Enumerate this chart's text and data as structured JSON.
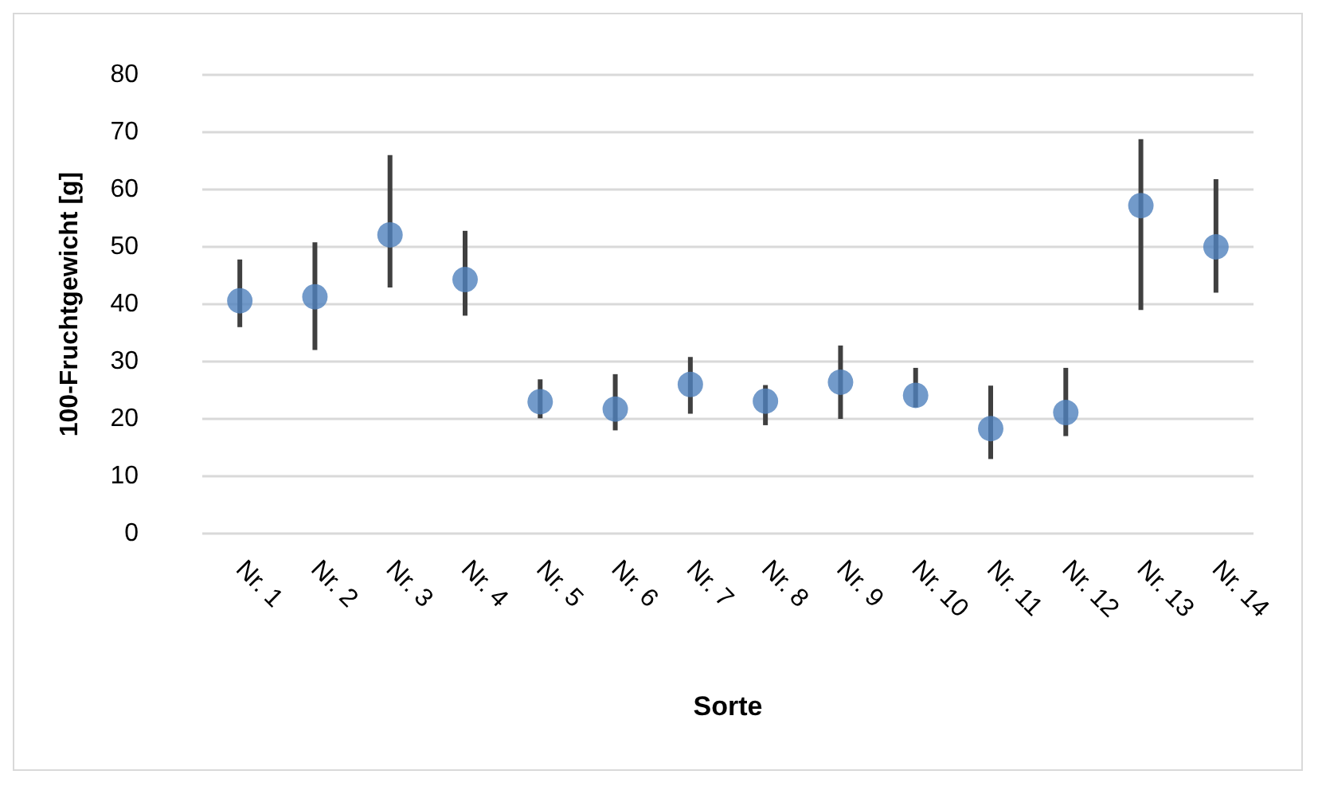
{
  "chart_data": {
    "type": "scatter",
    "xlabel": "Sorte",
    "ylabel": "100-Fruchtgewicht [g]",
    "categories": [
      "Nr. 1",
      "Nr. 2",
      "Nr. 3",
      "Nr. 4",
      "Nr. 5",
      "Nr. 6",
      "Nr. 7",
      "Nr. 8",
      "Nr. 9",
      "Nr. 10",
      "Nr. 11",
      "Nr. 12",
      "Nr. 13",
      "Nr. 14"
    ],
    "series": [
      {
        "color": "#4f81bd",
        "values": [
          40.6,
          41.3,
          52.1,
          44.3,
          23.0,
          21.7,
          26.0,
          23.1,
          26.4,
          24.1,
          18.3,
          21.1,
          57.2,
          50.0
        ],
        "errors": [
          [
            36.0,
            47.8
          ],
          [
            32.0,
            50.8
          ],
          [
            42.9,
            66.0
          ],
          [
            38.0,
            52.8
          ],
          [
            20.1,
            26.9
          ],
          [
            18.0,
            27.8
          ],
          [
            20.9,
            30.8
          ],
          [
            18.9,
            25.9
          ],
          [
            20.0,
            32.8
          ],
          [
            22.0,
            28.9
          ],
          [
            13.0,
            25.8
          ],
          [
            17.0,
            28.9
          ],
          [
            39.0,
            68.8
          ],
          [
            42.0,
            61.8
          ]
        ]
      }
    ],
    "ylim": [
      0,
      80
    ],
    "yticks": [
      0,
      10,
      20,
      30,
      40,
      50,
      60,
      70,
      80
    ],
    "grid": "y",
    "marker": "circle"
  }
}
